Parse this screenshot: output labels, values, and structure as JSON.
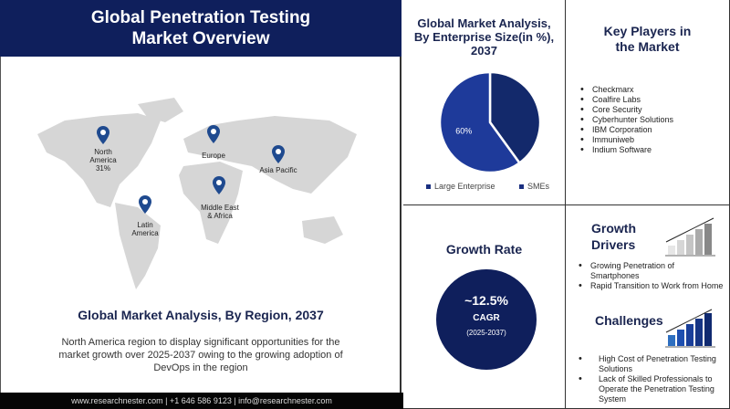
{
  "header": {
    "title": "Global Penetration Testing Market Overview"
  },
  "map": {
    "pins": [
      {
        "label": "North America 31%",
        "line1": "North",
        "line2": "America",
        "line3": "31%"
      },
      {
        "label": "Europe"
      },
      {
        "label": "Asia Pacific"
      },
      {
        "label": "Middle East & Africa",
        "line1": "Middle East",
        "line2": "& Africa"
      },
      {
        "label": "Latin America",
        "line1": "Latin",
        "line2": "America"
      }
    ],
    "pin_color": "#1f4a8f"
  },
  "region": {
    "title": "Global Market Analysis, By Region, 2037",
    "description": "North America region to display significant opportunities for the market growth over 2025-2037 owing to the growing adoption of DevOps in the region"
  },
  "footer": {
    "text": "www.researchnester.com | +1 646 586 9123 | info@researchnester.com"
  },
  "chart_data": {
    "type": "pie",
    "title": "Global Market Analysis, By Enterprise Size(in %), 2037",
    "slices": [
      {
        "name": "Large Enterprise",
        "value": 60,
        "label": "60%",
        "color": "#1e3a9a"
      },
      {
        "name": "SMEs",
        "value": 40,
        "color": "#13296b"
      }
    ],
    "legend": "bottom"
  },
  "key_players": {
    "title_line1": "Key Players in",
    "title_line2": "the Market",
    "items": [
      "Checkmarx",
      "Coalfire Labs",
      "Core Security",
      "Cyberhunter Solutions",
      "IBM Corporation",
      "Immuniweb",
      "Indium Software"
    ]
  },
  "growth": {
    "title": "Growth Rate",
    "value": "~12.5%",
    "label": "CAGR",
    "period": "(2025-2037)",
    "color": "#0f1f5c"
  },
  "drivers": {
    "title_line1": "Growth",
    "title_line2": "Drivers",
    "items": [
      "Growing Penetration of Smartphones",
      "Rapid Transition to Work from Home"
    ]
  },
  "challenges": {
    "title": "Challenges",
    "items": [
      "High Cost of Penetration Testing Solutions",
      "Lack of Skilled Professionals to Operate the Penetration Testing System"
    ]
  }
}
